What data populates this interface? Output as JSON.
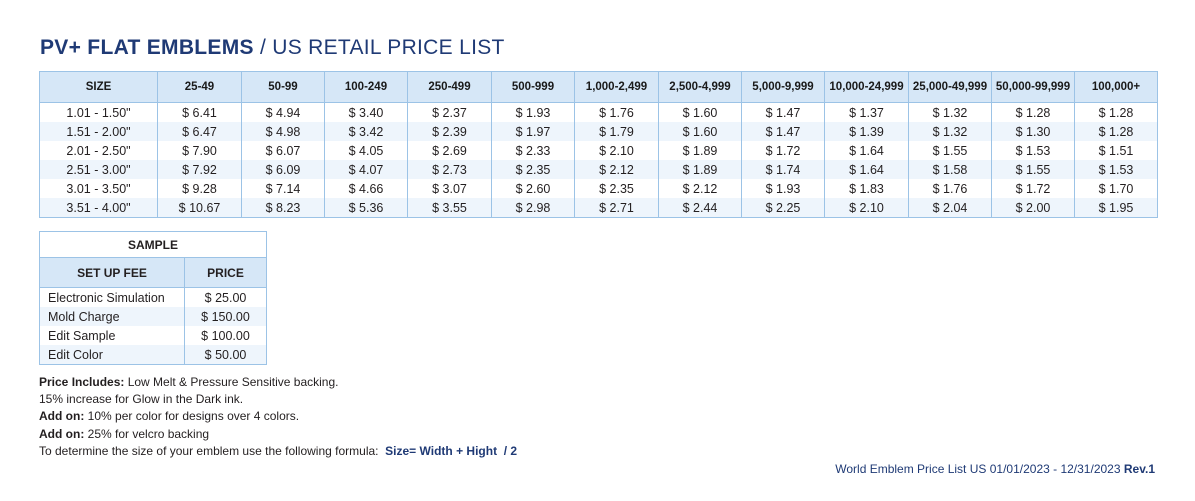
{
  "title": {
    "bold": "PV+ FLAT EMBLEMS",
    "rest": " / US RETAIL PRICE LIST"
  },
  "price_table": {
    "headers": [
      "SIZE",
      "25-49",
      "50-99",
      "100-249",
      "250-499",
      "500-999",
      "1,000-2,499",
      "2,500-4,999",
      "5,000-9,999",
      "10,000-24,999",
      "25,000-49,999",
      "50,000-99,999",
      "100,000+"
    ],
    "rows": [
      [
        "1.01 - 1.50\"",
        "$ 6.41",
        "$ 4.94",
        "$ 3.40",
        "$ 2.37",
        "$ 1.93",
        "$ 1.76",
        "$ 1.60",
        "$ 1.47",
        "$ 1.37",
        "$ 1.32",
        "$ 1.28",
        "$ 1.28"
      ],
      [
        "1.51 - 2.00\"",
        "$ 6.47",
        "$ 4.98",
        "$ 3.42",
        "$ 2.39",
        "$ 1.97",
        "$ 1.79",
        "$ 1.60",
        "$ 1.47",
        "$ 1.39",
        "$ 1.32",
        "$ 1.30",
        "$ 1.28"
      ],
      [
        "2.01 - 2.50\"",
        "$ 7.90",
        "$ 6.07",
        "$ 4.05",
        "$ 2.69",
        "$ 2.33",
        "$ 2.10",
        "$ 1.89",
        "$ 1.72",
        "$ 1.64",
        "$ 1.55",
        "$ 1.53",
        "$ 1.51"
      ],
      [
        "2.51 - 3.00\"",
        "$ 7.92",
        "$ 6.09",
        "$ 4.07",
        "$ 2.73",
        "$ 2.35",
        "$ 2.12",
        "$ 1.89",
        "$ 1.74",
        "$ 1.64",
        "$ 1.58",
        "$ 1.55",
        "$ 1.53"
      ],
      [
        "3.01 - 3.50\"",
        "$ 9.28",
        "$ 7.14",
        "$ 4.66",
        "$ 3.07",
        "$ 2.60",
        "$ 2.35",
        "$ 2.12",
        "$ 1.93",
        "$ 1.83",
        "$ 1.76",
        "$ 1.72",
        "$ 1.70"
      ],
      [
        "3.51 - 4.00\"",
        "$ 10.67",
        "$ 8.23",
        "$ 5.36",
        "$ 3.55",
        "$ 2.98",
        "$ 2.71",
        "$ 2.44",
        "$ 2.25",
        "$ 2.10",
        "$ 2.04",
        "$ 2.00",
        "$ 1.95"
      ]
    ]
  },
  "sample_table": {
    "caption": "SAMPLE",
    "headers": [
      "SET UP FEE",
      "PRICE"
    ],
    "rows": [
      [
        "Electronic Simulation",
        "$  25.00"
      ],
      [
        "Mold Charge",
        "$  150.00"
      ],
      [
        "Edit Sample",
        "$  100.00"
      ],
      [
        "Edit Color",
        "$  50.00"
      ]
    ]
  },
  "notes": {
    "line1_label": "Price Includes:",
    "line1_text": " Low Melt & Pressure Sensitive backing.",
    "line2_text": "15% increase for Glow in the Dark ink.",
    "line3_label": "Add on:",
    "line3_text": " 10% per color for designs over 4 colors.",
    "line4_label": "Add on:",
    "line4_text": " 25% for velcro backing",
    "line5_text": "To determine the size of your emblem use the following formula:  ",
    "line5_formula": "Size= Width + Hight  / 2"
  },
  "footer": {
    "text": "World Emblem Price List US 01/01/2023 - 12/31/2023 ",
    "rev": "Rev.1"
  },
  "colors": {
    "title": "#1f3a75",
    "header_bg": "#d6e7f7",
    "border": "#9cc3e6",
    "alt_row": "#eef5fc"
  }
}
